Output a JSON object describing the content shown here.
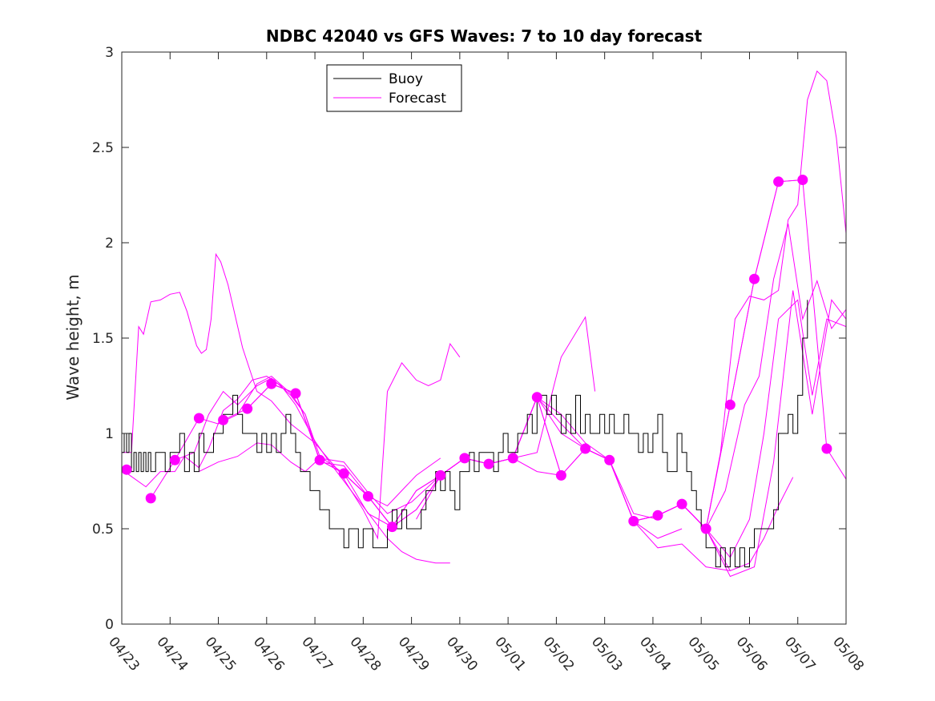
{
  "chart_data": {
    "type": "line",
    "title": "NDBC 42040 vs GFS Waves: 7 to 10 day forecast",
    "xlabel": "",
    "ylabel": "Wave height, m",
    "xlim": [
      0,
      15
    ],
    "ylim": [
      0,
      3
    ],
    "x_ticks": [
      0,
      1,
      2,
      3,
      4,
      5,
      6,
      7,
      8,
      9,
      10,
      11,
      12,
      13,
      14,
      15
    ],
    "x_tick_labels": [
      "04/23",
      "04/24",
      "04/25",
      "04/26",
      "04/27",
      "04/28",
      "04/29",
      "04/30",
      "05/01",
      "05/02",
      "05/03",
      "05/04",
      "05/05",
      "05/06",
      "05/07",
      "05/08"
    ],
    "y_ticks": [
      0,
      0.5,
      1,
      1.5,
      2,
      2.5,
      3
    ],
    "y_tick_labels": [
      "0",
      "0.5",
      "1",
      "1.5",
      "2",
      "2.5",
      "3"
    ],
    "legend": {
      "placement": "top-center",
      "entries": [
        "Buoy",
        "Forecast"
      ]
    },
    "colors": {
      "buoy": "#000000",
      "forecast": "#ff00ff"
    },
    "buoy": {
      "name": "Buoy",
      "x": [
        0,
        0.05,
        0.1,
        0.15,
        0.2,
        0.25,
        0.3,
        0.35,
        0.4,
        0.45,
        0.5,
        0.55,
        0.6,
        0.7,
        0.8,
        0.9,
        1.0,
        1.1,
        1.2,
        1.3,
        1.4,
        1.5,
        1.6,
        1.7,
        1.8,
        1.9,
        2.0,
        2.1,
        2.2,
        2.3,
        2.4,
        2.5,
        2.6,
        2.7,
        2.8,
        2.9,
        3.0,
        3.1,
        3.2,
        3.3,
        3.4,
        3.5,
        3.6,
        3.7,
        3.8,
        3.9,
        4.0,
        4.1,
        4.2,
        4.3,
        4.4,
        4.5,
        4.6,
        4.7,
        4.8,
        4.9,
        5.0,
        5.1,
        5.2,
        5.3,
        5.4,
        5.5,
        5.6,
        5.7,
        5.8,
        5.9,
        6.0,
        6.1,
        6.2,
        6.3,
        6.4,
        6.5,
        6.6,
        6.7,
        6.8,
        6.9,
        7.0,
        7.1,
        7.2,
        7.3,
        7.4,
        7.5,
        7.6,
        7.7,
        7.8,
        7.9,
        8.0,
        8.1,
        8.2,
        8.3,
        8.4,
        8.5,
        8.6,
        8.7,
        8.8,
        8.9,
        9.0,
        9.1,
        9.2,
        9.3,
        9.4,
        9.5,
        9.6,
        9.7,
        9.8,
        9.9,
        10.0,
        10.1,
        10.2,
        10.3,
        10.4,
        10.5,
        10.6,
        10.7,
        10.8,
        10.9,
        11.0,
        11.1,
        11.2,
        11.3,
        11.4,
        11.5,
        11.6,
        11.7,
        11.8,
        11.9,
        12.0,
        12.1,
        12.2,
        12.3,
        12.4,
        12.5,
        12.6,
        12.7,
        12.8,
        12.9,
        13.0,
        13.1,
        13.2,
        13.3,
        13.4,
        13.5,
        13.6,
        13.7,
        13.8,
        13.9,
        14.0,
        14.1,
        14.2
      ],
      "y": [
        0.9,
        1.0,
        0.9,
        1.0,
        0.8,
        0.9,
        0.8,
        0.9,
        0.8,
        0.9,
        0.8,
        0.9,
        0.8,
        0.9,
        0.9,
        0.8,
        0.9,
        0.9,
        1.0,
        0.8,
        0.9,
        0.8,
        1.0,
        0.9,
        0.9,
        1.0,
        1.0,
        1.1,
        1.1,
        1.2,
        1.1,
        1.0,
        1.0,
        1.0,
        0.9,
        1.0,
        0.9,
        1.0,
        0.9,
        1.0,
        1.1,
        1.0,
        0.9,
        0.8,
        0.8,
        0.7,
        0.7,
        0.6,
        0.6,
        0.5,
        0.5,
        0.5,
        0.4,
        0.5,
        0.5,
        0.4,
        0.5,
        0.5,
        0.4,
        0.4,
        0.4,
        0.5,
        0.6,
        0.5,
        0.6,
        0.5,
        0.5,
        0.5,
        0.6,
        0.7,
        0.7,
        0.8,
        0.7,
        0.8,
        0.7,
        0.6,
        0.8,
        0.8,
        0.9,
        0.8,
        0.9,
        0.9,
        0.9,
        0.8,
        0.9,
        1.0,
        0.9,
        0.9,
        1.0,
        1.0,
        1.1,
        1.0,
        1.2,
        1.2,
        1.1,
        1.2,
        1.1,
        1.0,
        1.1,
        1.0,
        1.2,
        1.0,
        1.1,
        1.0,
        1.0,
        1.1,
        1.0,
        1.1,
        1.0,
        1.0,
        1.1,
        1.0,
        1.0,
        0.9,
        1.0,
        0.9,
        1.0,
        1.1,
        0.9,
        0.8,
        0.8,
        1.0,
        0.9,
        0.8,
        0.7,
        0.6,
        0.5,
        0.4,
        0.4,
        0.3,
        0.4,
        0.3,
        0.4,
        0.3,
        0.4,
        0.3,
        0.4,
        0.5,
        0.5,
        0.5,
        0.5,
        0.6,
        1.0,
        1.0,
        1.1,
        1.0,
        1.2,
        1.5,
        1.7
      ]
    },
    "forecast_runs": [
      {
        "x": [
          0.0,
          0.2,
          0.35,
          0.45,
          0.6,
          0.8,
          1.0,
          1.2,
          1.35,
          1.55,
          1.65,
          1.75,
          1.85,
          1.95,
          2.05,
          2.2,
          2.5,
          2.8,
          3.1,
          3.5,
          4.0,
          4.5,
          5.0,
          5.3,
          5.5,
          5.8,
          6.1,
          6.35,
          6.6,
          6.8,
          7.0
        ],
        "y": [
          0.9,
          0.9,
          1.56,
          1.52,
          1.69,
          1.7,
          1.73,
          1.74,
          1.64,
          1.46,
          1.42,
          1.44,
          1.6,
          1.94,
          1.9,
          1.78,
          1.45,
          1.22,
          1.17,
          1.05,
          0.95,
          0.8,
          0.6,
          0.45,
          1.22,
          1.37,
          1.28,
          1.25,
          1.28,
          1.47,
          1.4
        ]
      },
      {
        "x": [
          0.0,
          0.5,
          0.8,
          1.1,
          1.3,
          1.6,
          1.8,
          2.1,
          2.4,
          2.7,
          3.0,
          3.3,
          3.6,
          4.0,
          4.3,
          4.6,
          4.9,
          5.2,
          5.5,
          5.8,
          6.1,
          6.5,
          6.8
        ],
        "y": [
          0.81,
          0.72,
          0.8,
          0.8,
          0.88,
          0.82,
          0.92,
          1.12,
          1.18,
          1.28,
          1.3,
          1.25,
          1.15,
          0.96,
          0.85,
          0.75,
          0.65,
          0.55,
          0.45,
          0.38,
          0.34,
          0.32,
          0.32
        ]
      },
      {
        "x": [
          0.6,
          1.1,
          1.5,
          1.8,
          2.1,
          2.4,
          2.8,
          3.1,
          3.5,
          3.8,
          4.1,
          4.6,
          5.1,
          5.6,
          5.7
        ],
        "y": [
          0.66,
          0.86,
          0.9,
          1.1,
          1.22,
          1.15,
          1.25,
          1.29,
          1.2,
          1.1,
          0.85,
          0.83,
          0.67,
          0.51,
          0.51
        ]
      },
      {
        "x": [
          1.1,
          1.6,
          2.0,
          2.4,
          2.8,
          3.1,
          3.5,
          3.8,
          4.1,
          4.6,
          5.1,
          5.5,
          5.8,
          6.1,
          6.6
        ],
        "y": [
          0.86,
          1.08,
          1.05,
          1.1,
          1.26,
          1.3,
          1.21,
          1.1,
          0.88,
          0.79,
          0.67,
          0.62,
          0.7,
          0.78,
          0.87
        ]
      },
      {
        "x": [
          1.6,
          2.0,
          2.4,
          2.8,
          3.1,
          3.5,
          3.8,
          4.1,
          4.6,
          5.1,
          5.5,
          6.0,
          6.6,
          7.1,
          7.6,
          8.1,
          8.6,
          9.1
        ],
        "y": [
          0.8,
          0.85,
          0.88,
          0.95,
          0.94,
          0.85,
          0.8,
          0.87,
          0.85,
          0.69,
          0.58,
          0.64,
          0.78,
          0.87,
          0.84,
          0.87,
          0.8,
          0.78
        ]
      },
      {
        "x": [
          2.1,
          2.6,
          3.1,
          3.6,
          4.1,
          4.6,
          5.1,
          5.6,
          6.1,
          6.6,
          7.1,
          7.6,
          8.1,
          8.6,
          9.1,
          9.6,
          9.8
        ],
        "y": [
          1.07,
          1.13,
          1.26,
          1.21,
          0.86,
          0.79,
          0.58,
          0.51,
          0.6,
          0.78,
          0.87,
          0.84,
          0.87,
          0.9,
          1.4,
          1.61,
          1.22
        ]
      },
      {
        "x": [
          2.6,
          3.1,
          3.6,
          4.1,
          4.6,
          5.1,
          5.6,
          6.1,
          6.6,
          7.1,
          7.6,
          8.1,
          8.6,
          9.1,
          9.6,
          10.1,
          10.6,
          11.1
        ],
        "y": [
          1.13,
          1.26,
          1.21,
          0.86,
          0.79,
          0.67,
          0.51,
          0.6,
          0.78,
          0.87,
          0.84,
          0.87,
          1.19,
          1.1,
          0.95,
          0.86,
          0.58,
          0.55
        ]
      },
      {
        "x": [
          3.1,
          3.6,
          4.1,
          4.6,
          5.1,
          5.6,
          6.1,
          6.6,
          7.1,
          7.6,
          8.1,
          8.6,
          9.1,
          9.6,
          10.1,
          10.6,
          11.1,
          11.6
        ],
        "y": [
          1.26,
          1.21,
          0.86,
          0.79,
          0.67,
          0.51,
          0.7,
          0.78,
          0.87,
          0.84,
          0.87,
          1.19,
          1.05,
          0.92,
          0.86,
          0.54,
          0.45,
          0.5
        ]
      },
      {
        "x": [
          3.6,
          4.1,
          4.6,
          5.1,
          5.6,
          6.1,
          6.6,
          7.1,
          7.6,
          8.1,
          8.6,
          9.1,
          9.6,
          10.1,
          10.6,
          11.1,
          11.6,
          12.1,
          12.6
        ],
        "y": [
          1.21,
          0.86,
          0.79,
          0.67,
          0.51,
          0.7,
          0.78,
          0.87,
          0.84,
          0.87,
          1.19,
          1.0,
          0.92,
          0.86,
          0.54,
          0.4,
          0.42,
          0.3,
          0.28
        ]
      },
      {
        "x": [
          6.1,
          6.6,
          7.1,
          7.6,
          8.1,
          8.6,
          9.1,
          9.6,
          10.1,
          10.6,
          11.1,
          11.6,
          12.1,
          12.6,
          13.1,
          13.6,
          14.1
        ],
        "y": [
          0.55,
          0.78,
          0.87,
          0.84,
          0.87,
          1.19,
          0.78,
          0.92,
          0.86,
          0.54,
          0.57,
          0.63,
          0.5,
          1.15,
          1.81,
          2.32,
          2.33
        ]
      },
      {
        "x": [
          8.1,
          8.6,
          9.1,
          9.6,
          10.1,
          10.6,
          11.1,
          11.6,
          12.1,
          12.6,
          13.1,
          13.6,
          14.1,
          14.6,
          15.0
        ],
        "y": [
          0.87,
          1.19,
          0.78,
          0.92,
          0.86,
          0.54,
          0.57,
          0.63,
          0.5,
          1.15,
          1.81,
          2.32,
          2.33,
          0.92,
          0.76
        ]
      },
      {
        "x": [
          9.6,
          10.1,
          10.6,
          11.1,
          11.6,
          12.1,
          12.4,
          12.7,
          13.0,
          13.3,
          13.6,
          13.8,
          14.0,
          14.2,
          14.4,
          14.6,
          14.8,
          15.0
        ],
        "y": [
          0.92,
          0.86,
          0.54,
          0.57,
          0.63,
          0.5,
          0.9,
          1.6,
          1.72,
          1.7,
          1.75,
          2.12,
          2.2,
          2.75,
          2.9,
          2.85,
          2.55,
          2.05
        ]
      },
      {
        "x": [
          10.1,
          10.6,
          11.1,
          11.6,
          12.1,
          12.5,
          12.9,
          13.2,
          13.5,
          13.8,
          14.1,
          14.4,
          14.7,
          15.0
        ],
        "y": [
          0.86,
          0.54,
          0.57,
          0.63,
          0.5,
          0.7,
          1.15,
          1.3,
          1.81,
          2.1,
          1.6,
          1.8,
          1.55,
          1.65
        ]
      },
      {
        "x": [
          10.6,
          11.1,
          11.6,
          12.1,
          12.6,
          13.0,
          13.3,
          13.6,
          14.0,
          14.3,
          14.6,
          15.0
        ],
        "y": [
          0.54,
          0.57,
          0.63,
          0.5,
          0.35,
          0.55,
          1.0,
          1.6,
          1.7,
          1.2,
          1.6,
          1.56
        ]
      },
      {
        "x": [
          11.1,
          11.6,
          12.1,
          12.6,
          13.1,
          13.5,
          13.9,
          14.3,
          14.7,
          15.0
        ],
        "y": [
          0.57,
          0.63,
          0.5,
          0.25,
          0.3,
          0.85,
          1.75,
          1.1,
          1.7,
          1.6
        ]
      },
      {
        "x": [
          11.6,
          12.1,
          12.6,
          13.0,
          13.3,
          13.6,
          13.9
        ],
        "y": [
          0.63,
          0.5,
          0.28,
          0.32,
          0.45,
          0.62,
          0.77
        ]
      }
    ],
    "forecast_markers": {
      "x": [
        0.1,
        0.6,
        1.1,
        1.6,
        2.1,
        2.6,
        3.1,
        3.6,
        4.1,
        4.6,
        5.1,
        5.6,
        6.6,
        7.1,
        7.6,
        8.1,
        8.6,
        9.1,
        9.6,
        10.1,
        10.6,
        11.1,
        11.6,
        12.1,
        12.6,
        13.1,
        13.6,
        14.1,
        14.6
      ],
      "y": [
        0.81,
        0.66,
        0.86,
        1.08,
        1.07,
        1.13,
        1.26,
        1.21,
        0.86,
        0.79,
        0.67,
        0.51,
        0.78,
        0.87,
        0.84,
        0.87,
        1.19,
        0.78,
        0.92,
        0.86,
        0.54,
        0.57,
        0.63,
        0.5,
        1.15,
        1.81,
        2.32,
        2.33,
        0.92
      ]
    }
  }
}
